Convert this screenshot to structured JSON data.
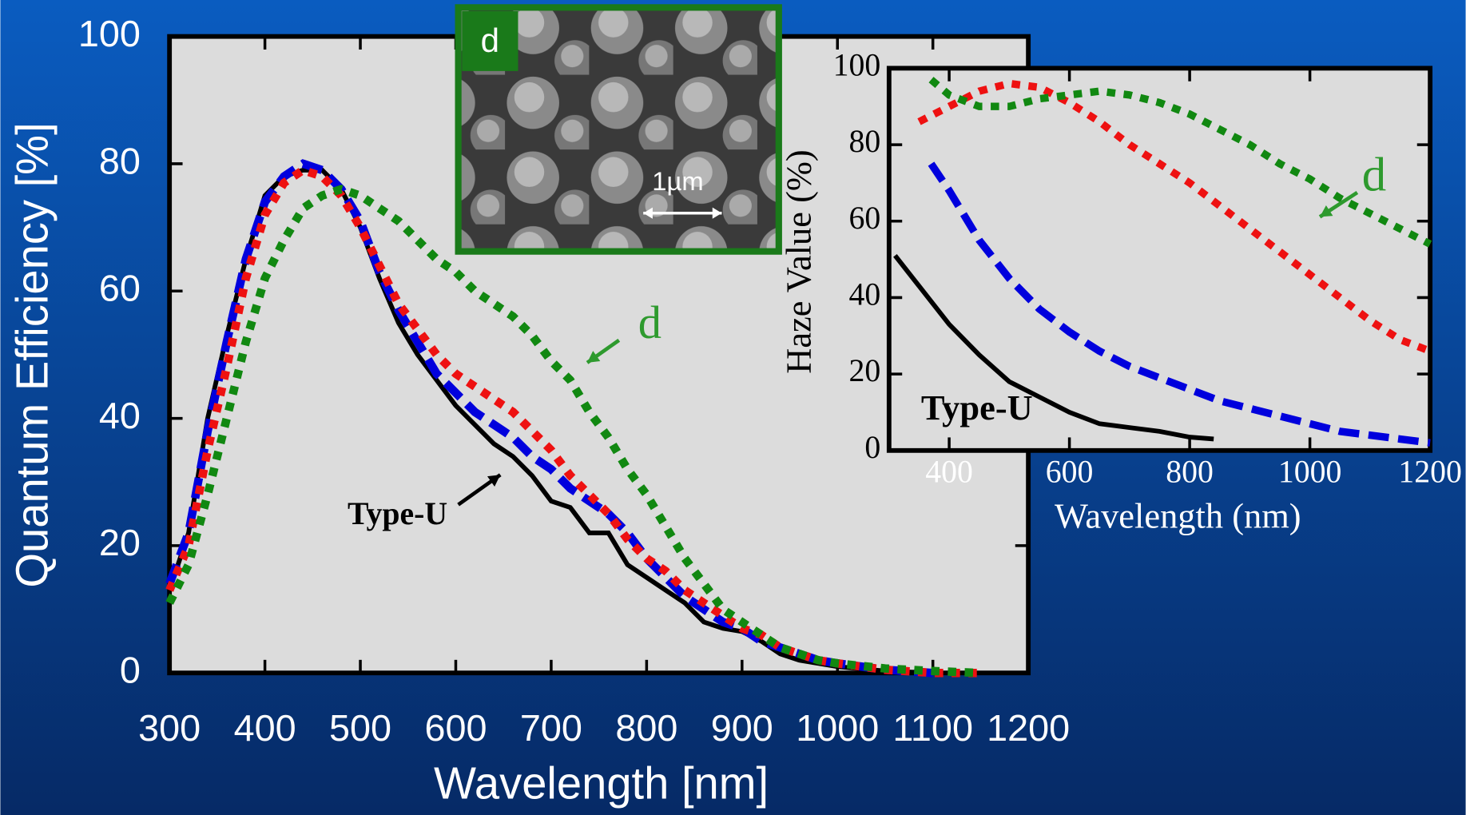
{
  "chart_data": [
    {
      "type": "line",
      "xlabel": "Wavelength [nm]",
      "ylabel": "Quantum Efficiency [%]",
      "x": [
        300,
        320,
        340,
        360,
        380,
        400,
        420,
        440,
        460,
        480,
        500,
        520,
        540,
        560,
        580,
        600,
        620,
        640,
        660,
        680,
        700,
        720,
        740,
        760,
        780,
        800,
        820,
        840,
        860,
        880,
        900,
        920,
        940,
        960,
        980,
        1000,
        1050,
        1100,
        1150
      ],
      "series": [
        {
          "color": "#000000",
          "dash": "solid",
          "values": [
            13,
            22,
            40,
            53,
            65,
            75,
            78,
            79,
            79,
            76,
            70,
            62,
            55,
            50,
            46,
            42,
            39,
            36,
            34,
            31,
            27,
            26,
            22,
            22,
            17,
            15,
            13,
            11,
            8,
            7,
            6.5,
            5,
            3,
            2,
            1.5,
            1,
            0.3,
            0,
            null
          ]
        },
        {
          "color": "#0000dd",
          "dash": "dashed",
          "values": [
            14,
            22,
            38,
            52,
            65,
            74,
            78,
            80,
            79,
            76,
            71,
            63,
            57,
            52,
            47,
            44,
            41,
            39,
            37,
            34,
            32,
            29,
            27,
            25,
            22,
            18,
            15,
            12,
            10,
            8,
            7,
            5,
            4,
            3,
            2,
            1.5,
            0.5,
            0,
            null
          ]
        },
        {
          "color": "#ee1111",
          "dash": "dotted",
          "values": [
            13,
            20,
            35,
            48,
            62,
            72,
            77,
            79,
            78,
            75,
            70,
            64,
            58,
            54,
            50,
            47,
            45,
            43,
            41,
            38,
            35,
            31,
            28,
            25,
            21,
            18,
            16,
            13,
            11,
            9,
            7,
            6,
            4,
            3,
            2,
            1.5,
            0.5,
            0,
            0
          ]
        },
        {
          "color": "#118811",
          "dash": "dotted",
          "values": [
            11,
            17,
            28,
            40,
            52,
            62,
            68,
            73,
            75,
            76,
            75,
            73,
            71,
            68,
            65,
            63,
            60,
            58,
            56,
            53,
            49,
            46,
            41,
            37,
            32,
            28,
            23,
            18,
            14,
            10,
            8,
            6,
            4,
            3,
            2,
            1.5,
            0.7,
            0.3,
            0
          ]
        }
      ],
      "xlim": [
        300,
        1200
      ],
      "xticks": [
        300,
        400,
        500,
        600,
        700,
        800,
        900,
        1000,
        1100,
        1200
      ],
      "ylim": [
        0,
        100
      ],
      "yticks": [
        0,
        20,
        40,
        60,
        80,
        100
      ],
      "grid": false,
      "annotations": [
        {
          "text": "d",
          "color": "#2e9a2e"
        },
        {
          "text": "Type-U",
          "color": "#000000"
        }
      ]
    },
    {
      "type": "line",
      "xlabel": "Wavelength  (nm)",
      "ylabel": "Haze Value (%)",
      "series": [
        {
          "color": "#000000",
          "dash": "solid",
          "x": [
            310,
            350,
            400,
            450,
            500,
            550,
            600,
            650,
            700,
            750,
            800,
            840
          ],
          "values": [
            51,
            43,
            33,
            25,
            18,
            14,
            10,
            7,
            6,
            5,
            3.5,
            3
          ]
        },
        {
          "color": "#0000dd",
          "dash": "dashed",
          "x": [
            370,
            400,
            450,
            500,
            550,
            600,
            650,
            700,
            750,
            800,
            850,
            900,
            950,
            1000,
            1050,
            1100,
            1150,
            1200
          ],
          "values": [
            75,
            68,
            55,
            45,
            37,
            31,
            26,
            22,
            19,
            16,
            13,
            11,
            9,
            7,
            5,
            4,
            3,
            2
          ]
        },
        {
          "color": "#ee1111",
          "dash": "dotted",
          "x": [
            350,
            400,
            450,
            500,
            550,
            600,
            650,
            700,
            750,
            800,
            850,
            900,
            950,
            1000,
            1050,
            1100,
            1150,
            1200
          ],
          "values": [
            86,
            90,
            94,
            96,
            95,
            91,
            86,
            80,
            75,
            70,
            64,
            58,
            52,
            46,
            40,
            34,
            29,
            26
          ]
        },
        {
          "color": "#118811",
          "dash": "dotted",
          "x": [
            370,
            400,
            450,
            500,
            550,
            600,
            650,
            700,
            750,
            800,
            850,
            900,
            950,
            1000,
            1050,
            1100,
            1150,
            1200
          ],
          "values": [
            97,
            93,
            90,
            90,
            92,
            93,
            94,
            93,
            91,
            88,
            84,
            80,
            75,
            71,
            66,
            62,
            58,
            54
          ]
        }
      ],
      "xlim": [
        300,
        1200
      ],
      "xticks": [
        400,
        600,
        800,
        1000,
        1200
      ],
      "ylim": [
        0,
        100
      ],
      "yticks": [
        0,
        20,
        40,
        60,
        80,
        100
      ],
      "grid": false,
      "annotations": [
        {
          "text": "Type-U",
          "color": "#000000"
        },
        {
          "text": "d",
          "color": "#2e9a2e"
        }
      ]
    }
  ],
  "sem_image": {
    "label": "d",
    "scale_bar": "1µm"
  }
}
